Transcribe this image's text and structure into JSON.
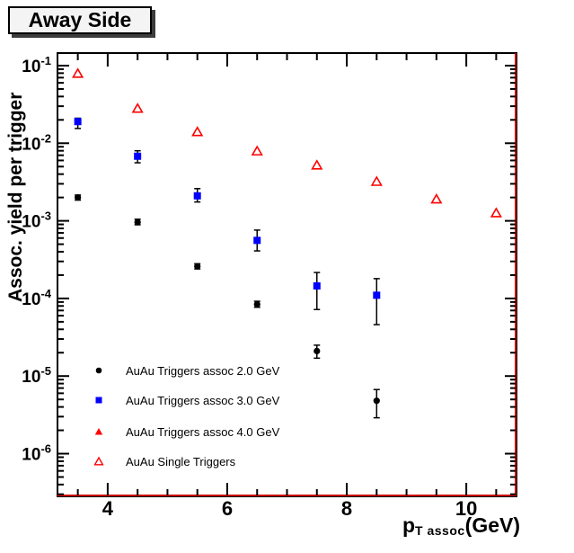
{
  "title": "Away Side",
  "colors": {
    "marker_red": "#ff0000",
    "marker_blue": "#0000ff",
    "marker_black": "#000000",
    "frame_red": "#cc0000",
    "axis_black": "#000000"
  },
  "chart_data": {
    "type": "scatter",
    "title": "Away Side",
    "ylabel": "Assoc. yield per trigger",
    "xlabel": {
      "main": "p",
      "sub": "T assoc",
      "unit": "(GeV)"
    },
    "y_scale": "log",
    "grid": false,
    "legend_position": "bottom-left-inside",
    "x_range": [
      3.16,
      10.84
    ],
    "y_log_range": [
      -0.838,
      -6.55
    ],
    "x_major_ticks": [
      4,
      6,
      8,
      10
    ],
    "x_minor_tick_step": 0.5,
    "y_major_tick_exponents": [
      -1,
      -2,
      -3,
      -4,
      -5,
      -6
    ],
    "series": [
      {
        "name": "AuAu Triggers assoc 2.0 GeV",
        "marker": "filled-circle",
        "color": "#000000",
        "x": [
          3.5,
          4.5,
          5.5,
          6.5,
          7.5,
          8.5
        ],
        "y": [
          0.002,
          0.00096,
          0.00026,
          8.4e-05,
          2.1e-05,
          4.8e-06
        ],
        "y_err_low": [
          0.00185,
          0.00089,
          0.00024,
          7.7e-05,
          1.7e-05,
          2.9e-06
        ],
        "y_err_high": [
          0.00215,
          0.00105,
          0.00028,
          9.2e-05,
          2.5e-05,
          6.7e-06
        ]
      },
      {
        "name": "AuAu Triggers assoc 3.0 GeV",
        "marker": "filled-square",
        "color": "#0000ff",
        "x": [
          3.5,
          4.5,
          5.5,
          6.5,
          7.5,
          8.5
        ],
        "y": [
          0.019,
          0.0068,
          0.0021,
          0.00056,
          0.000145,
          0.00011
        ],
        "y_err_low": [
          0.0155,
          0.0056,
          0.00175,
          0.00041,
          7.2e-05,
          4.6e-05
        ],
        "y_err_high": [
          0.021,
          0.008,
          0.0026,
          0.00076,
          0.000216,
          0.00018
        ]
      },
      {
        "name": "AuAu Triggers assoc 4.0 GeV",
        "marker": "filled-triangle",
        "color": "#ff0000",
        "x": [],
        "y": []
      },
      {
        "name": "AuAu Single Triggers",
        "marker": "open-triangle",
        "color": "#ff0000",
        "x": [
          3.5,
          4.5,
          5.5,
          6.5,
          7.5,
          8.5,
          9.5,
          10.5
        ],
        "y": [
          0.079,
          0.028,
          0.014,
          0.0079,
          0.0052,
          0.0032,
          0.0019,
          0.00126
        ]
      }
    ]
  }
}
